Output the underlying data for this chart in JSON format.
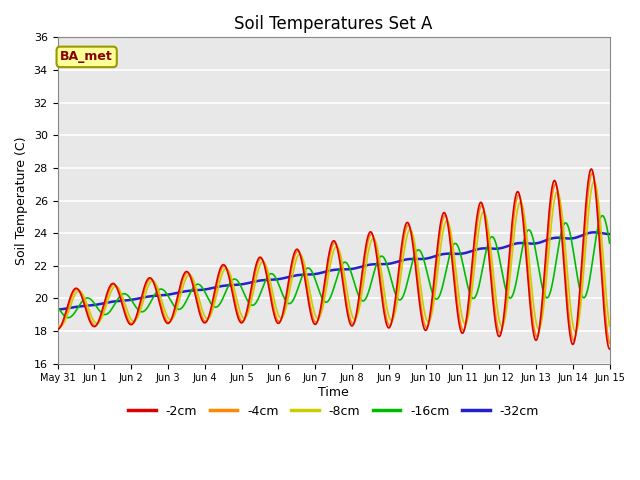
{
  "title": "Soil Temperatures Set A",
  "xlabel": "Time",
  "ylabel": "Soil Temperature (C)",
  "ylim": [
    16,
    36
  ],
  "yticks": [
    16,
    18,
    20,
    22,
    24,
    26,
    28,
    30,
    32,
    34,
    36
  ],
  "xtick_labels": [
    "May 31",
    "Jun 1",
    "Jun 2",
    "Jun 3",
    "Jun 4",
    "Jun 5",
    "Jun 6",
    "Jun 7",
    "Jun 8",
    "Jun 9",
    "Jun 10",
    "Jun 11",
    "Jun 12",
    "Jun 13",
    "Jun 14",
    "Jun 15"
  ],
  "label_box": "BA_met",
  "line_colors": [
    "#dd0000",
    "#ff8800",
    "#cccc00",
    "#00bb00",
    "#2222cc"
  ],
  "line_labels": [
    "-2cm",
    "-4cm",
    "-8cm",
    "-16cm",
    "-32cm"
  ],
  "line_widths": [
    1.2,
    1.2,
    1.2,
    1.2,
    1.8
  ],
  "background_color": "#e8e8e8",
  "figure_background": "#ffffff",
  "grid_color": "#ffffff",
  "title_fontsize": 12
}
